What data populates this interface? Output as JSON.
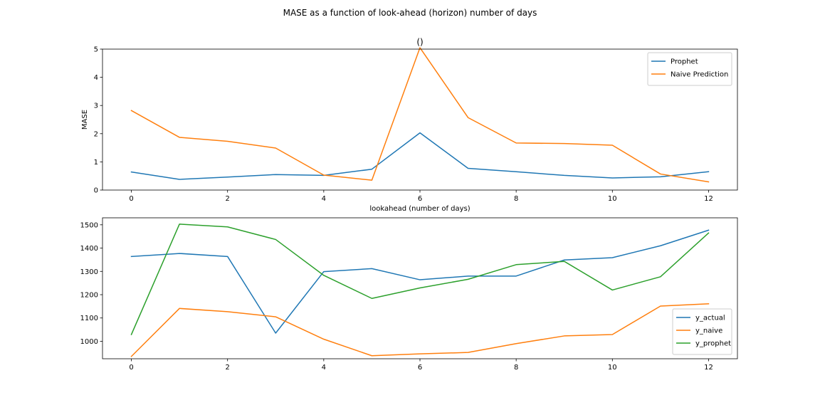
{
  "figure": {
    "suptitle": "MASE as a function of look-ahead (horizon) number of days"
  },
  "chart_data": [
    {
      "type": "line",
      "title": "()",
      "xlabel": "lookahead (number of days)",
      "ylabel": "MASE",
      "xlim": [
        -0.6,
        12.6
      ],
      "ylim": [
        0,
        5
      ],
      "x": [
        0,
        1,
        2,
        3,
        4,
        5,
        6,
        7,
        8,
        9,
        10,
        11,
        12
      ],
      "xticks": [
        0,
        2,
        4,
        6,
        8,
        10,
        12
      ],
      "yticks": [
        0,
        1,
        2,
        3,
        4,
        5
      ],
      "legend": "top-right",
      "series": [
        {
          "name": "Prophet",
          "color": "#1f77b4",
          "values": [
            0.64,
            0.38,
            0.46,
            0.55,
            0.52,
            0.74,
            2.03,
            0.77,
            0.65,
            0.52,
            0.43,
            0.47,
            0.65
          ]
        },
        {
          "name": "Naive Prediction",
          "color": "#ff7f0e",
          "values": [
            2.82,
            1.87,
            1.73,
            1.49,
            0.53,
            0.35,
            5.05,
            2.57,
            1.67,
            1.65,
            1.59,
            0.57,
            0.29
          ]
        }
      ]
    },
    {
      "type": "line",
      "title": "",
      "xlabel": "",
      "ylabel": "",
      "xlim": [
        -0.6,
        12.6
      ],
      "ylim": [
        925,
        1530
      ],
      "x": [
        0,
        1,
        2,
        3,
        4,
        5,
        6,
        7,
        8,
        9,
        10,
        11,
        12
      ],
      "xticks": [
        0,
        2,
        4,
        6,
        8,
        10,
        12
      ],
      "yticks": [
        1000,
        1100,
        1200,
        1300,
        1400,
        1500
      ],
      "legend": "bottom-right",
      "series": [
        {
          "name": "y_actual",
          "color": "#1f77b4",
          "values": [
            1364,
            1377,
            1364,
            1035,
            1299,
            1312,
            1264,
            1280,
            1280,
            1349,
            1359,
            1410,
            1477
          ]
        },
        {
          "name": "y_naive",
          "color": "#ff7f0e",
          "values": [
            935,
            1141,
            1127,
            1105,
            1009,
            938,
            946,
            952,
            990,
            1023,
            1029,
            1151,
            1161
          ]
        },
        {
          "name": "y_prophet",
          "color": "#2ca02c",
          "values": [
            1029,
            1503,
            1491,
            1437,
            1283,
            1184,
            1229,
            1266,
            1329,
            1343,
            1220,
            1277,
            1465
          ]
        }
      ]
    }
  ]
}
